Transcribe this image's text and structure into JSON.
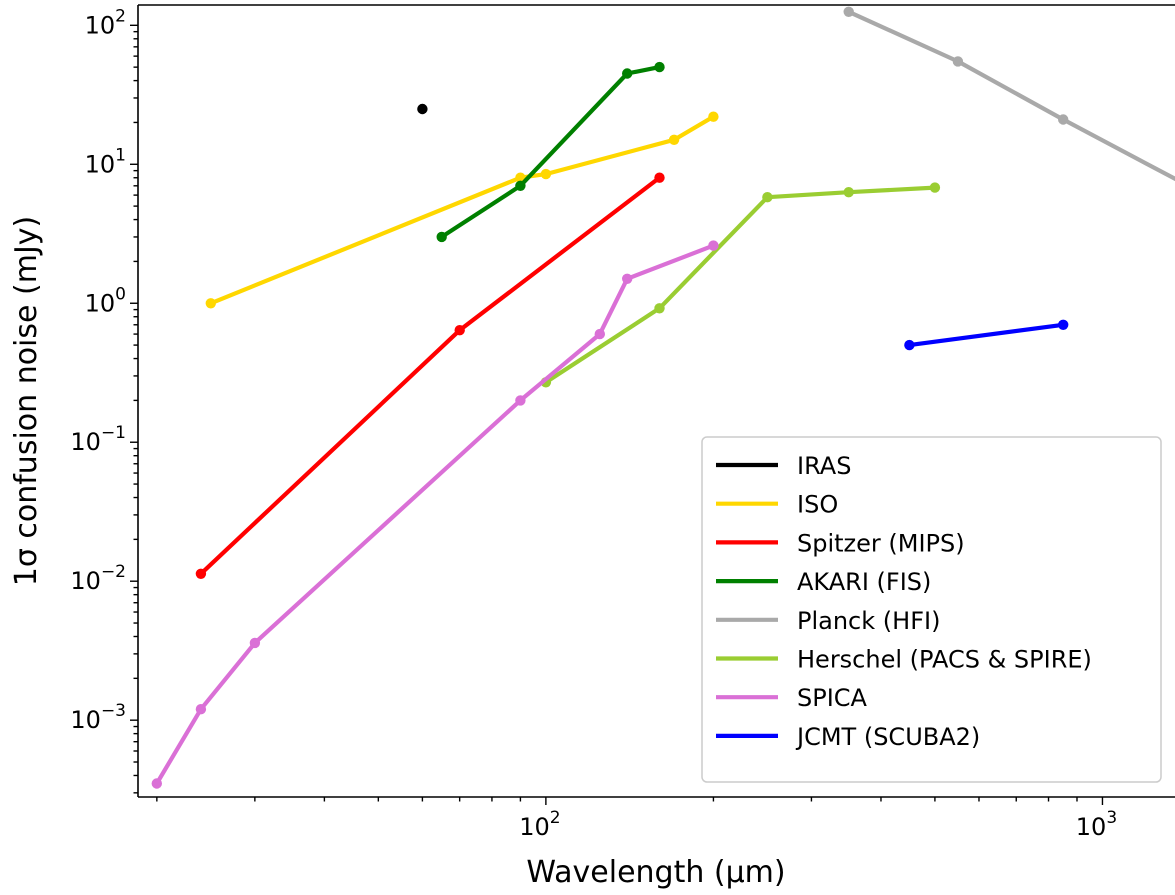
{
  "chart_data": {
    "type": "line",
    "xlabel": "Wavelength (μm)",
    "ylabel": "1σ confusion noise (mJy)",
    "xscale": "log",
    "yscale": "log",
    "xlim": [
      18.5,
      1350
    ],
    "ylim": [
      0.00028,
      140
    ],
    "x_ticks": [
      {
        "value": 100,
        "base": "10",
        "exp": "2"
      },
      {
        "value": 1000,
        "base": "10",
        "exp": "3"
      }
    ],
    "y_ticks": [
      {
        "value": 100,
        "base": "10",
        "exp": "2"
      },
      {
        "value": 10,
        "base": "10",
        "exp": "1"
      },
      {
        "value": 1,
        "base": "10",
        "exp": "0"
      },
      {
        "value": 0.1,
        "base": "10",
        "exp": "−1"
      },
      {
        "value": 0.01,
        "base": "10",
        "exp": "−2"
      },
      {
        "value": 0.001,
        "base": "10",
        "exp": "−3"
      }
    ],
    "grid": false,
    "legend_position": "lower-right",
    "series": [
      {
        "name": "IRAS",
        "color": "#000000",
        "x": [
          60
        ],
        "y": [
          25
        ]
      },
      {
        "name": "ISO",
        "color": "#FFD700",
        "x": [
          25,
          90,
          100,
          170,
          200
        ],
        "y": [
          1.0,
          8.0,
          8.5,
          15,
          22
        ]
      },
      {
        "name": "Spitzer (MIPS)",
        "color": "#FF0000",
        "x": [
          24,
          70,
          160
        ],
        "y": [
          0.0113,
          0.64,
          8.0
        ]
      },
      {
        "name": "AKARI (FIS)",
        "color": "#008000",
        "x": [
          65,
          90,
          140,
          160
        ],
        "y": [
          3.0,
          7.0,
          45,
          50
        ]
      },
      {
        "name": "Planck (HFI)",
        "color": "#A9A9A9",
        "x": [
          350,
          550,
          850,
          1380
        ],
        "y": [
          125,
          55,
          21,
          7.5
        ]
      },
      {
        "name": "Herschel (PACS & SPIRE)",
        "color": "#9ACD32",
        "x": [
          100,
          160,
          250,
          350,
          500
        ],
        "y": [
          0.27,
          0.92,
          5.8,
          6.3,
          6.8
        ]
      },
      {
        "name": "SPICA",
        "color": "#DA70D6",
        "x": [
          20,
          24,
          30,
          90,
          125,
          140,
          200
        ],
        "y": [
          0.00035,
          0.0012,
          0.0036,
          0.2,
          0.6,
          1.5,
          2.6
        ]
      },
      {
        "name": "JCMT (SCUBA2)",
        "color": "#0000FF",
        "x": [
          450,
          850
        ],
        "y": [
          0.5,
          0.7
        ]
      }
    ]
  }
}
